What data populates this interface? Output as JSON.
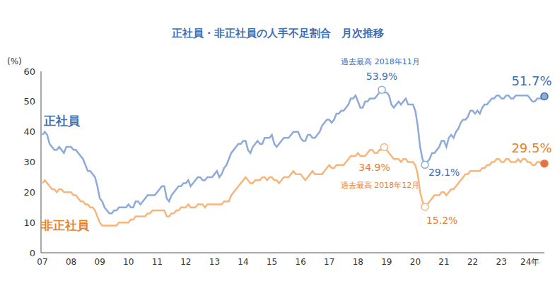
{
  "chart_data": {
    "type": "line",
    "title": "正社員・非正社員の人手不足割合　月次推移",
    "y_label": "(%)",
    "grid": false,
    "ylim": [
      0,
      60
    ],
    "yticks": [
      0,
      10,
      20,
      30,
      40,
      50,
      60
    ],
    "categories": [
      "07",
      null,
      null,
      null,
      null,
      null,
      null,
      null,
      null,
      null,
      null,
      null,
      "08",
      null,
      null,
      null,
      null,
      null,
      null,
      null,
      null,
      null,
      null,
      null,
      "09",
      null,
      null,
      null,
      null,
      null,
      null,
      null,
      null,
      null,
      null,
      null,
      "10",
      null,
      null,
      null,
      null,
      null,
      null,
      null,
      null,
      null,
      null,
      null,
      "11",
      null,
      null,
      null,
      null,
      null,
      null,
      null,
      null,
      null,
      null,
      null,
      "12",
      null,
      null,
      null,
      null,
      null,
      null,
      null,
      null,
      null,
      null,
      null,
      "13",
      null,
      null,
      null,
      null,
      null,
      null,
      null,
      null,
      null,
      null,
      null,
      "14",
      null,
      null,
      null,
      null,
      null,
      null,
      null,
      null,
      null,
      null,
      null,
      "15",
      null,
      null,
      null,
      null,
      null,
      null,
      null,
      null,
      null,
      null,
      null,
      "16",
      null,
      null,
      null,
      null,
      null,
      null,
      null,
      null,
      null,
      null,
      null,
      "17",
      null,
      null,
      null,
      null,
      null,
      null,
      null,
      null,
      null,
      null,
      null,
      "18",
      null,
      null,
      null,
      null,
      null,
      null,
      null,
      null,
      null,
      null,
      null,
      "19",
      null,
      null,
      null,
      null,
      null,
      null,
      null,
      null,
      null,
      null,
      null,
      "20",
      null,
      null,
      null,
      null,
      null,
      null,
      null,
      null,
      null,
      null,
      null,
      "21",
      null,
      null,
      null,
      null,
      null,
      null,
      null,
      null,
      null,
      null,
      null,
      "22",
      null,
      null,
      null,
      null,
      null,
      null,
      null,
      null,
      null,
      null,
      null,
      "23",
      null,
      null,
      null,
      null,
      null,
      null,
      null,
      null,
      null,
      null,
      null,
      "24年",
      null,
      null,
      null,
      null,
      null,
      null
    ],
    "series": [
      {
        "name": "正社員",
        "color": "#8eaad8",
        "values": [
          39,
          40,
          39,
          36,
          35,
          34,
          34,
          35,
          34,
          33,
          35,
          35,
          35,
          34,
          34,
          33,
          32,
          31,
          29,
          27,
          27,
          26,
          25,
          22,
          18,
          17,
          15,
          14,
          13,
          13,
          14,
          14,
          15,
          15,
          15,
          15,
          16,
          15,
          15,
          17,
          17,
          16,
          17,
          18,
          19,
          19,
          19,
          19,
          20,
          21,
          22,
          22,
          18,
          17,
          19,
          20,
          21,
          22,
          22,
          23,
          23,
          24,
          22,
          23,
          24,
          25,
          25,
          24,
          24,
          25,
          25,
          25,
          26,
          27,
          25,
          26,
          28,
          29,
          31,
          33,
          34,
          35,
          36,
          36,
          37,
          37,
          34,
          33,
          35,
          36,
          37,
          36,
          36,
          38,
          38,
          38,
          39,
          36,
          35,
          36,
          37,
          38,
          38,
          38,
          39,
          40,
          40,
          40,
          38,
          37,
          37,
          39,
          39,
          38,
          38,
          39,
          40,
          42,
          43,
          44,
          44,
          43,
          44,
          46,
          46,
          47,
          47,
          48,
          49,
          51,
          51,
          52,
          50,
          48,
          48,
          50,
          50,
          51,
          51,
          51,
          52,
          53,
          53.9,
          53,
          53,
          52,
          49,
          48,
          49,
          50,
          49,
          50,
          51,
          49,
          49,
          49,
          47,
          42,
          35,
          31,
          29.1,
          30,
          31,
          33,
          33,
          34,
          35,
          37,
          37,
          35,
          38,
          39,
          38,
          40,
          41,
          43,
          44,
          44,
          45,
          47,
          47,
          46,
          47,
          46,
          48,
          49,
          49,
          50,
          51,
          51,
          52,
          52,
          51,
          51,
          52,
          52,
          51,
          51,
          52,
          52,
          52,
          52,
          52,
          52,
          51,
          50,
          50,
          51,
          51,
          51,
          51.7
        ]
      },
      {
        "name": "非正社員",
        "color": "#f7b57c",
        "values": [
          23,
          24,
          23,
          22,
          21,
          21,
          20,
          21,
          21,
          20,
          20,
          20,
          20,
          19,
          19,
          18,
          17,
          17,
          16,
          16,
          15,
          15,
          14,
          12,
          10,
          9,
          9,
          9,
          9,
          9,
          9,
          9,
          10,
          10,
          10,
          10,
          10,
          11,
          11,
          12,
          12,
          12,
          12,
          12,
          13,
          13,
          14,
          14,
          14,
          14,
          14,
          14,
          12,
          12,
          13,
          13,
          14,
          14,
          15,
          15,
          15,
          16,
          15,
          15,
          15,
          16,
          16,
          16,
          15,
          16,
          16,
          16,
          16,
          16,
          16,
          16,
          17,
          17,
          17,
          19,
          20,
          21,
          22,
          23,
          24,
          25,
          24,
          23,
          23,
          24,
          24,
          24,
          25,
          25,
          24,
          25,
          25,
          24,
          24,
          23,
          24,
          25,
          25,
          25,
          26,
          27,
          26,
          26,
          26,
          25,
          24,
          25,
          26,
          27,
          26,
          26,
          26,
          26,
          27,
          28,
          29,
          28,
          28,
          29,
          29,
          29,
          29,
          30,
          31,
          32,
          32,
          32,
          33,
          32,
          32,
          32,
          33,
          34,
          34,
          33,
          33,
          34,
          34,
          34.9,
          34,
          33,
          32,
          31,
          31,
          31,
          30,
          31,
          31,
          30,
          30,
          30,
          29,
          26,
          20,
          17,
          15.2,
          16,
          17,
          18,
          19,
          19,
          19,
          20,
          20,
          19,
          20,
          21,
          21,
          22,
          23,
          24,
          25,
          26,
          26,
          27,
          27,
          27,
          27,
          27,
          28,
          28,
          29,
          29,
          30,
          30,
          31,
          31,
          30,
          30,
          31,
          31,
          30,
          30,
          30,
          31,
          30,
          31,
          31,
          30,
          30,
          29,
          29,
          30,
          30,
          29,
          29.5
        ]
      }
    ],
    "annotations": [
      {
        "series": "正社員",
        "point": 142,
        "value": 53.9,
        "text": "53.9%",
        "note": "過去最高 2018年11月",
        "marker": "hollow"
      },
      {
        "series": "非正社員",
        "point": 143,
        "value": 34.9,
        "text": "34.9%",
        "note": "過去最高 2018年12月",
        "marker": "hollow"
      },
      {
        "series": "正社員",
        "point": 160,
        "value": 29.1,
        "text": "29.1%",
        "marker": "hollow"
      },
      {
        "series": "非正社員",
        "point": 160,
        "value": 15.2,
        "text": "15.2%",
        "marker": "hollow"
      },
      {
        "series": "正社員",
        "point": 210,
        "value": 51.7,
        "text": "51.7%",
        "marker": "filled"
      },
      {
        "series": "非正社員",
        "point": 210,
        "value": 29.5,
        "text": "29.5%",
        "marker": "filled"
      }
    ]
  }
}
